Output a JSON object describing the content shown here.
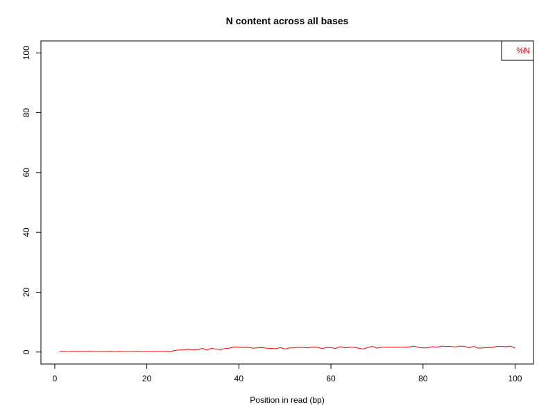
{
  "chart_data": {
    "type": "line",
    "title": "N content across all bases",
    "xlabel": "Position in read (bp)",
    "ylabel": "",
    "xlim": [
      -3,
      104
    ],
    "ylim": [
      -4,
      104
    ],
    "xticks": [
      0,
      20,
      40,
      60,
      80,
      100
    ],
    "yticks": [
      0,
      20,
      40,
      60,
      80,
      100
    ],
    "legend": {
      "position": "top-right"
    },
    "grid": false,
    "series": [
      {
        "name": "%N",
        "color": "#ff0000",
        "x": [
          1,
          2,
          3,
          4,
          5,
          6,
          7,
          8,
          9,
          10,
          11,
          12,
          13,
          14,
          15,
          16,
          17,
          18,
          19,
          20,
          21,
          22,
          23,
          24,
          25,
          26,
          27,
          28,
          29,
          30,
          31,
          32,
          33,
          34,
          35,
          36,
          37,
          38,
          39,
          40,
          41,
          42,
          43,
          44,
          45,
          46,
          47,
          48,
          49,
          50,
          51,
          52,
          53,
          54,
          55,
          56,
          57,
          58,
          59,
          60,
          61,
          62,
          63,
          64,
          65,
          66,
          67,
          68,
          69,
          70,
          71,
          72,
          73,
          74,
          75,
          76,
          77,
          78,
          79,
          80,
          81,
          82,
          83,
          84,
          85,
          86,
          87,
          88,
          89,
          90,
          91,
          92,
          93,
          94,
          95,
          96,
          97,
          98,
          99,
          100
        ],
        "values": [
          0.1,
          0.2,
          0.1,
          0.2,
          0.2,
          0.1,
          0.2,
          0.2,
          0.1,
          0.1,
          0.1,
          0.2,
          0.1,
          0.2,
          0.1,
          0.1,
          0.1,
          0.2,
          0.1,
          0.2,
          0.2,
          0.2,
          0.2,
          0.2,
          0.1,
          0.5,
          0.7,
          0.7,
          0.9,
          0.7,
          0.8,
          1.2,
          0.7,
          1.2,
          1.0,
          0.8,
          1.2,
          1.3,
          1.7,
          1.6,
          1.5,
          1.6,
          1.3,
          1.4,
          1.5,
          1.3,
          1.2,
          1.1,
          1.5,
          1.0,
          1.4,
          1.4,
          1.6,
          1.5,
          1.4,
          1.7,
          1.6,
          1.2,
          1.5,
          1.5,
          1.2,
          1.8,
          1.4,
          1.6,
          1.6,
          1.3,
          1.0,
          1.5,
          1.9,
          1.3,
          1.6,
          1.6,
          1.6,
          1.6,
          1.6,
          1.6,
          1.7,
          2.0,
          1.6,
          1.4,
          1.4,
          1.8,
          1.6,
          2.0,
          1.9,
          1.9,
          1.7,
          2.0,
          1.9,
          1.4,
          1.9,
          1.3,
          1.4,
          1.5,
          1.5,
          1.9,
          1.9,
          1.8,
          2.0,
          1.3
        ]
      }
    ]
  }
}
